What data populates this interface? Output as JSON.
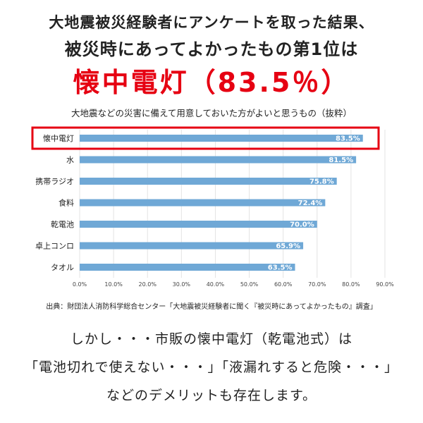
{
  "headline": {
    "line1": "大地震被災経験者にアンケートを取った結果、",
    "line2": "被災時にあってよかったもの第1位は",
    "line3": "懐中電灯（83.5％）",
    "line3_color": "#e60012"
  },
  "chart_data": {
    "type": "bar",
    "orientation": "horizontal",
    "title": "大地震などの災害に備えて用意しておいた方がよいと思うもの（抜粋）",
    "categories": [
      "懐中電灯",
      "水",
      "携帯ラジオ",
      "食料",
      "乾電池",
      "卓上コンロ",
      "タオル"
    ],
    "values": [
      83.5,
      81.5,
      75.8,
      72.4,
      70.0,
      65.9,
      63.5
    ],
    "value_labels": [
      "83.5%",
      "81.5%",
      "75.8%",
      "72.4%",
      "70.0%",
      "65.9%",
      "63.5%"
    ],
    "xlim": [
      0,
      90
    ],
    "xticks": [
      "0.0%",
      "10.0%",
      "20.0%",
      "30.0%",
      "40.0%",
      "50.0%",
      "60.0%",
      "70.0%",
      "80.0%",
      "90.0%"
    ],
    "grid": true,
    "bar_color": "#6fa8d6",
    "highlight_index": 0,
    "highlight_color": "#e60012"
  },
  "source": "出典：財団法人消防科学総合センター「大地震被災経験者に聞く『被災時にあってよかったもの』調査」",
  "footer": {
    "line1": "しかし・・・市販の懐中電灯（乾電池式）は",
    "line2": "「電池切れで使えない・・・」「液漏れすると危険・・・」",
    "line3": "などのデメリットも存在します。"
  }
}
